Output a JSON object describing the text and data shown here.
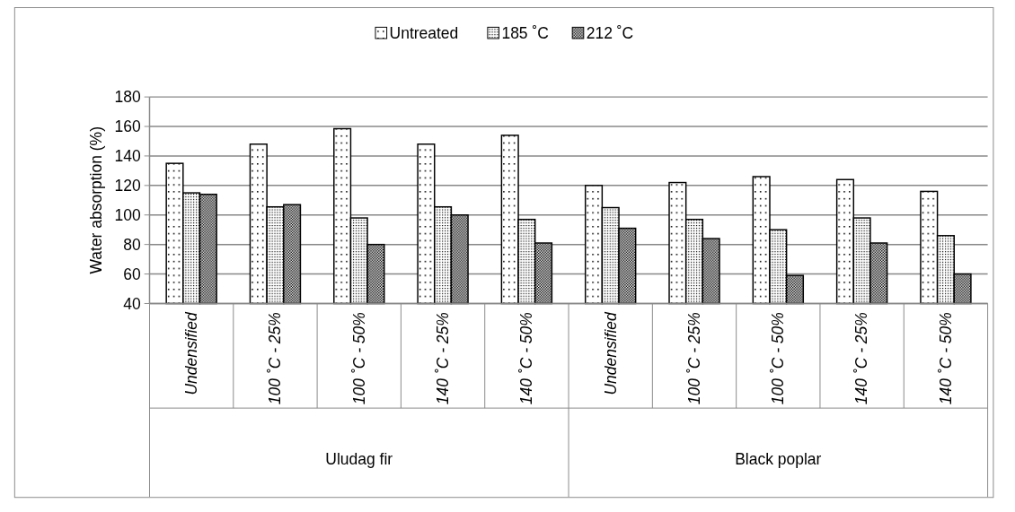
{
  "chart_data": {
    "type": "bar",
    "ylabel": "Water absorption (%)",
    "categories": [
      "Undensified",
      "100 ˚C - 25%",
      "100 ˚C - 50%",
      "140 ˚C - 25%",
      "140 ˚C - 50%",
      "Undensified",
      "100 ˚C - 25%",
      "100 ˚C - 50%",
      "140 ˚C - 25%",
      "140 ˚C - 50%"
    ],
    "series": [
      {
        "name": "Untreated",
        "color": "#000000",
        "values": [
          135,
          148,
          158.5,
          148,
          154,
          120,
          122,
          126,
          124,
          116
        ]
      },
      {
        "name": "185 ˚C",
        "color": "#000000",
        "values": [
          115,
          105.5,
          98,
          105.5,
          97,
          105,
          97,
          90,
          98,
          86
        ]
      },
      {
        "name": "212 ˚C",
        "color": "#000000",
        "values": [
          114,
          107,
          80,
          100,
          81,
          91,
          84,
          59,
          81,
          60
        ]
      }
    ],
    "annotations": [
      "Uludag fir",
      "Black poplar"
    ],
    "ylim": [
      40,
      180
    ],
    "yticks": [
      40,
      60,
      80,
      100,
      120,
      140,
      160,
      180
    ],
    "grid": "y",
    "legend": "top"
  }
}
